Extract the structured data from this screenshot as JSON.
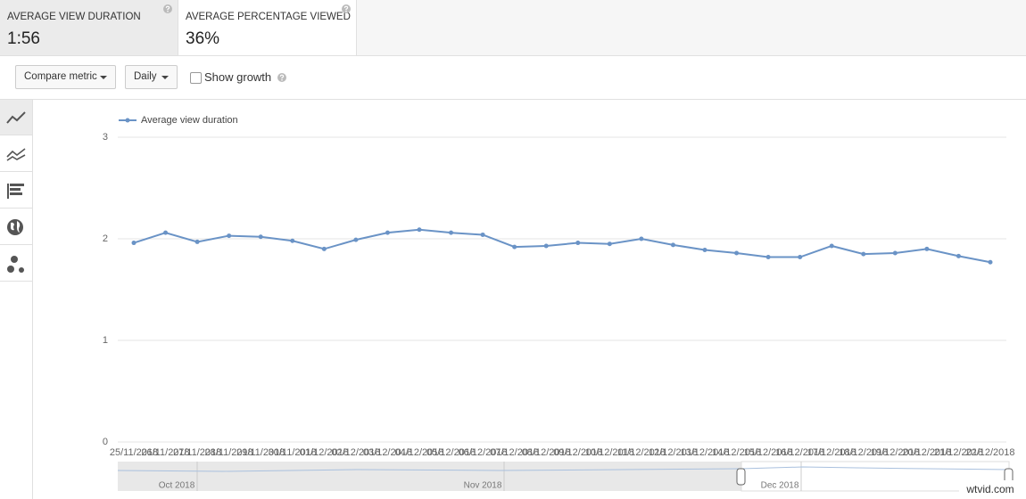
{
  "tabs": [
    {
      "label": "AVERAGE VIEW DURATION",
      "value": "1:56",
      "selected": true
    },
    {
      "label": "AVERAGE PERCENTAGE VIEWED",
      "value": "36%",
      "selected": false
    }
  ],
  "toolbar": {
    "compare": "Compare metric",
    "period": "Daily",
    "growth": "Show growth"
  },
  "chart_data": {
    "type": "line",
    "x": [
      "25/11/2018",
      "26/11/2018",
      "27/11/2018",
      "28/11/2018",
      "29/11/2018",
      "30/11/2018",
      "01/12/2018",
      "02/12/2018",
      "03/12/2018",
      "04/12/2018",
      "05/12/2018",
      "06/12/2018",
      "07/12/2018",
      "08/12/2018",
      "09/12/2018",
      "10/12/2018",
      "11/12/2018",
      "12/12/2018",
      "13/12/2018",
      "14/12/2018",
      "15/12/2018",
      "16/12/2018",
      "17/12/2018",
      "18/12/2018",
      "19/12/2018",
      "20/12/2018",
      "21/12/2018",
      "22/12/2018"
    ],
    "series": [
      {
        "name": "Average view duration",
        "color": "#6a93c6",
        "values": [
          1.96,
          2.06,
          1.97,
          2.03,
          2.02,
          1.98,
          1.9,
          1.99,
          2.06,
          2.09,
          2.06,
          2.04,
          1.92,
          1.93,
          1.96,
          1.95,
          2.0,
          1.94,
          1.89,
          1.86,
          1.82,
          1.82,
          1.93,
          1.85,
          1.86,
          1.9,
          1.83,
          1.77
        ]
      }
    ],
    "ylim": [
      0,
      3
    ],
    "yticks": [
      0,
      1,
      2,
      3
    ],
    "grid": true
  },
  "navigator": {
    "months": [
      "Oct 2018",
      "Nov 2018",
      "Dec 2018"
    ]
  },
  "watermark": "wtvid.com"
}
